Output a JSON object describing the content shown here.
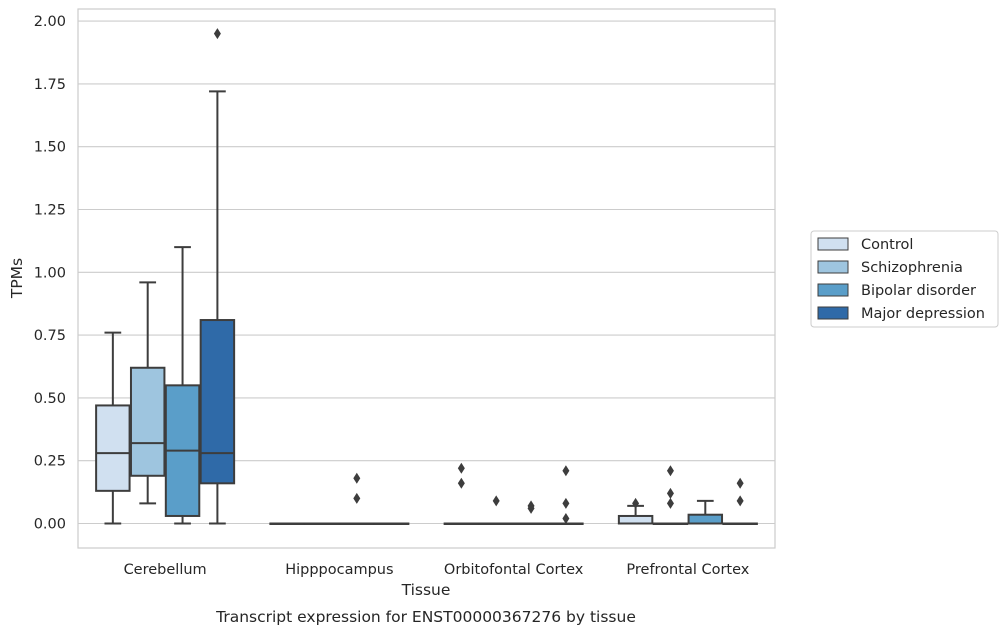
{
  "caption": "Transcript expression for ENST00000367276 by tissue",
  "chart_data": {
    "type": "box",
    "xlabel": "Tissue",
    "ylabel": "TPMs",
    "ylim": [
      -0.1,
      2.05
    ],
    "yticks": [
      "0.00",
      "0.25",
      "0.50",
      "0.75",
      "1.00",
      "1.25",
      "1.50",
      "1.75",
      "2.00"
    ],
    "grid": true,
    "legend_position": "right",
    "categories": [
      "Cerebellum",
      "Hipppocampus",
      "Orbitofontal Cortex",
      "Prefrontal Cortex"
    ],
    "series": [
      {
        "name": "Control",
        "color": "#d0e0f0",
        "boxes": [
          {
            "whislo": 0.0,
            "q1": 0.13,
            "med": 0.28,
            "q3": 0.47,
            "whishi": 0.76,
            "fliers": []
          },
          {
            "whislo": 0.0,
            "q1": 0.0,
            "med": 0.0,
            "q3": 0.0,
            "whishi": 0.0,
            "fliers": []
          },
          {
            "whislo": 0.0,
            "q1": 0.0,
            "med": 0.0,
            "q3": 0.0,
            "whishi": 0.0,
            "fliers": [
              0.22,
              0.16
            ]
          },
          {
            "whislo": 0.0,
            "q1": 0.0,
            "med": 0.0,
            "q3": 0.03,
            "whishi": 0.07,
            "fliers": [
              0.08
            ]
          }
        ]
      },
      {
        "name": "Schizophrenia",
        "color": "#9ec5df",
        "boxes": [
          {
            "whislo": 0.08,
            "q1": 0.19,
            "med": 0.32,
            "q3": 0.62,
            "whishi": 0.96,
            "fliers": []
          },
          {
            "whislo": 0.0,
            "q1": 0.0,
            "med": 0.0,
            "q3": 0.0,
            "whishi": 0.0,
            "fliers": []
          },
          {
            "whislo": 0.0,
            "q1": 0.0,
            "med": 0.0,
            "q3": 0.0,
            "whishi": 0.0,
            "fliers": [
              0.09
            ]
          },
          {
            "whislo": 0.0,
            "q1": 0.0,
            "med": 0.0,
            "q3": 0.0,
            "whishi": 0.0,
            "fliers": [
              0.21,
              0.12,
              0.08
            ]
          }
        ]
      },
      {
        "name": "Bipolar disorder",
        "color": "#5a9ec9",
        "boxes": [
          {
            "whislo": 0.0,
            "q1": 0.03,
            "med": 0.29,
            "q3": 0.55,
            "whishi": 1.1,
            "fliers": []
          },
          {
            "whislo": 0.0,
            "q1": 0.0,
            "med": 0.0,
            "q3": 0.0,
            "whishi": 0.0,
            "fliers": [
              0.18,
              0.1
            ]
          },
          {
            "whislo": 0.0,
            "q1": 0.0,
            "med": 0.0,
            "q3": 0.0,
            "whishi": 0.0,
            "fliers": [
              0.07,
              0.06
            ]
          },
          {
            "whislo": 0.0,
            "q1": 0.0,
            "med": 0.0,
            "q3": 0.035,
            "whishi": 0.09,
            "fliers": []
          }
        ]
      },
      {
        "name": "Major depression",
        "color": "#2f6aa8",
        "boxes": [
          {
            "whislo": 0.0,
            "q1": 0.16,
            "med": 0.28,
            "q3": 0.81,
            "whishi": 1.72,
            "fliers": [
              1.95
            ]
          },
          {
            "whislo": 0.0,
            "q1": 0.0,
            "med": 0.0,
            "q3": 0.0,
            "whishi": 0.0,
            "fliers": []
          },
          {
            "whislo": 0.0,
            "q1": 0.0,
            "med": 0.0,
            "q3": 0.0,
            "whishi": 0.0,
            "fliers": [
              0.21,
              0.08,
              0.02
            ]
          },
          {
            "whislo": 0.0,
            "q1": 0.0,
            "med": 0.0,
            "q3": 0.0,
            "whishi": 0.0,
            "fliers": [
              0.16,
              0.09
            ]
          }
        ]
      }
    ]
  }
}
